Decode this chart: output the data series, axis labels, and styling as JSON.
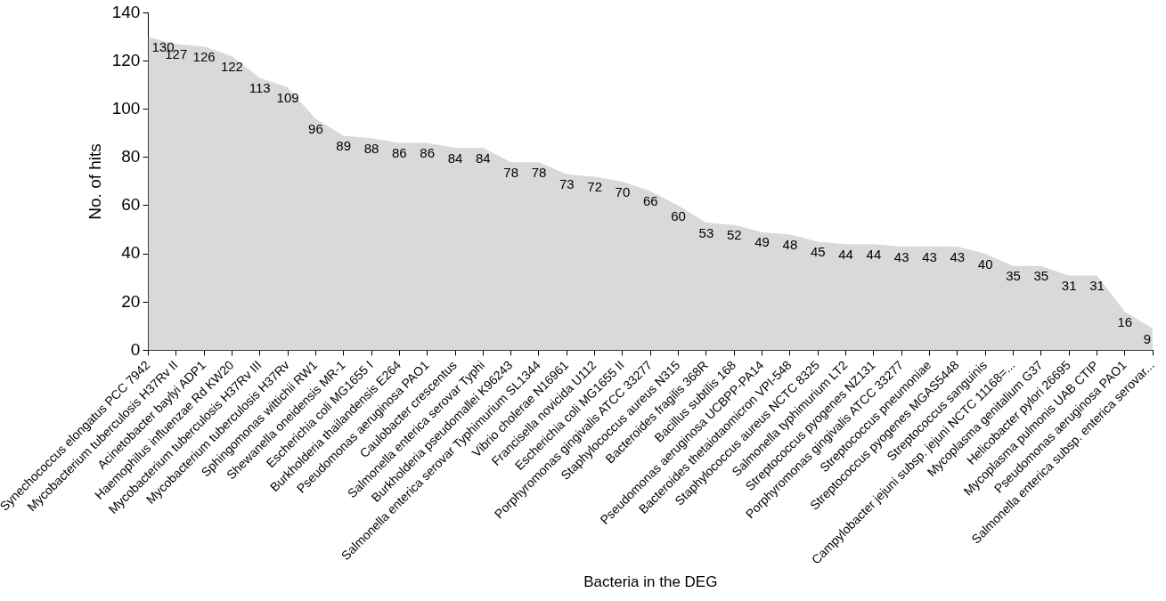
{
  "chart_data": {
    "type": "area",
    "xlabel": "Bacteria in the DEG",
    "ylabel": "No. of hits",
    "categories": [
      "Synechococcus elongatus PCC 7942",
      "Mycobacterium tuberculosis H37Rv II",
      "Acinetobacter baylyi ADP1",
      "Haemophilus influenzae Rd KW20",
      "Mycobacterium tuberculosis H37Rv III",
      "Mycobacterium tuberculosis H37Rv",
      "Sphingomonas wittichii RW1",
      "Shewanella oneidensis MR-1",
      "Escherichia coli MG1655 I",
      "Burkholderia thailandensis E264",
      "Pseudomonas aeruginosa PAO1",
      "Caulobacter crescentus",
      "Salmonella enterica serovar Typhi",
      "Burkholderia pseudomallei K96243",
      "Salmonella enterica serovar Typhimurium SL1344",
      "Vibrio cholerae N16961",
      "Francisella novicida U112",
      "Escherichia coli MG1655 II",
      "Porphyromonas gingivalis ATCC 33277",
      "Staphylococcus aureus N315",
      "Bacteroides fragilis 368R",
      "Bacillus subtilis 168",
      "Pseudomonas aeruginosa UCBPP-PA14",
      "Bacteroides thetaiotaomicron VPI-548",
      "Staphylococcus aureus NCTC 8325",
      "Salmonella typhimurium LT2",
      "Streptococcus pyogenes NZ131",
      "Porphyromonas gingivalis ATCC 33277",
      "Streptococcus pneumoniae",
      "Streptococcus pyogenes MGAS5448",
      "Streptococcus sanguinis",
      "Campylobacter jejuni subsp. jejuni NCTC 11168=...",
      "Mycoplasma genitalium G37",
      "Helicobacter pylori 26695",
      "Mycoplasma pulmonis UAB CTIP",
      "Pseudomonas aeruginosa PAO1",
      "Salmonella enterica subsp. enterica serovar..."
    ],
    "values": [
      130,
      127,
      126,
      122,
      113,
      109,
      96,
      89,
      88,
      86,
      86,
      84,
      84,
      78,
      78,
      73,
      72,
      70,
      66,
      60,
      53,
      52,
      49,
      48,
      45,
      44,
      44,
      43,
      43,
      43,
      40,
      35,
      35,
      31,
      31,
      16,
      9
    ],
    "color": "#d9d9d9",
    "data_labels": true,
    "ylim": [
      0,
      140
    ],
    "yticks": [
      0,
      20,
      40,
      60,
      80,
      100,
      120,
      140
    ],
    "grid": false,
    "legend": false
  }
}
